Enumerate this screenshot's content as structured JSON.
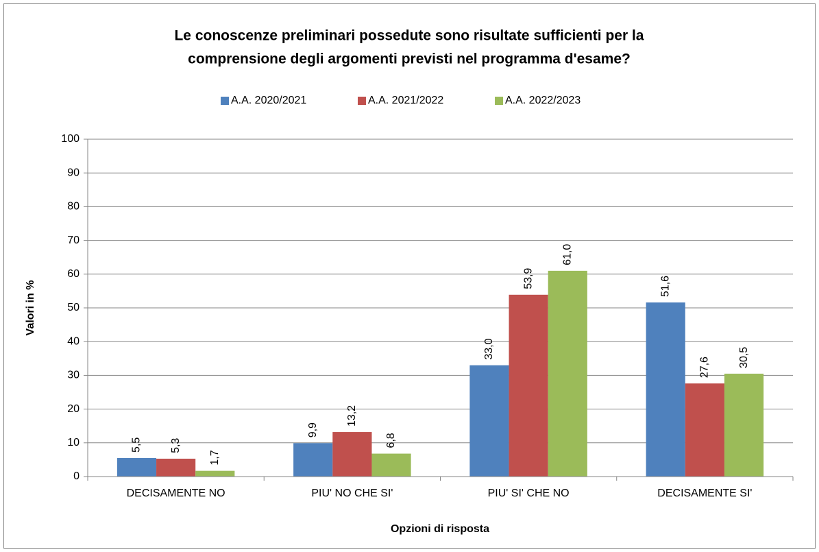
{
  "chart_data": {
    "type": "bar",
    "title": [
      "Le conoscenze preliminari possedute sono risultate sufficienti per la",
      "comprensione degli argomenti previsti nel programma d'esame?"
    ],
    "x_label": "Opzioni di risposta",
    "y_label": "Valori in %",
    "categories": [
      "DECISAMENTE NO",
      "PIU' NO CHE SI'",
      "PIU' SI' CHE NO",
      "DECISAMENTE SI'"
    ],
    "series": [
      {
        "name": "A.A. 2020/2021",
        "color": "#4f81bd",
        "values": [
          5.5,
          9.9,
          33.0,
          51.6
        ],
        "value_labels": [
          "5,5",
          "9,9",
          "33,0",
          "51,6"
        ]
      },
      {
        "name": "A.A. 2021/2022",
        "color": "#c0504d",
        "values": [
          5.3,
          13.2,
          53.9,
          27.6
        ],
        "value_labels": [
          "5,3",
          "13,2",
          "53,9",
          "27,6"
        ]
      },
      {
        "name": "A.A. 2022/2023",
        "color": "#9bbb59",
        "values": [
          1.7,
          6.8,
          61.0,
          30.5
        ],
        "value_labels": [
          "1,7",
          "6,8",
          "61,0",
          "30,5"
        ]
      }
    ],
    "ylim": [
      0,
      100
    ],
    "yticks": [
      0,
      10,
      20,
      30,
      40,
      50,
      60,
      70,
      80,
      90,
      100
    ],
    "grid": true,
    "legend": "top"
  }
}
